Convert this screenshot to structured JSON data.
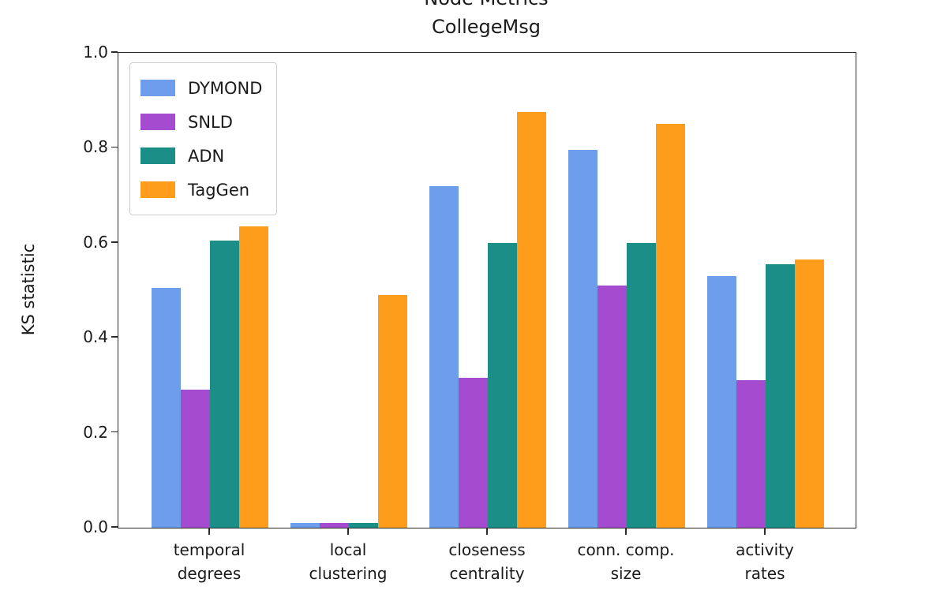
{
  "title": {
    "line1": "Node Metrics",
    "line2": "CollegeMsg"
  },
  "axes": {
    "ylabel": "KS statistic"
  },
  "chart_data": {
    "type": "bar",
    "title": "Node Metrics\nCollegeMsg",
    "xlabel": "",
    "ylabel": "KS statistic",
    "ylim": [
      0.0,
      1.0
    ],
    "yticks": [
      "0.0",
      "0.2",
      "0.4",
      "0.6",
      "0.8",
      "1.0"
    ],
    "grid": false,
    "legend_position": "upper left",
    "categories": [
      "temporal\ndegrees",
      "local\nclustering",
      "closeness\ncentrality",
      "conn. comp.\nsize",
      "activity\nrates"
    ],
    "series": [
      {
        "name": "DYMOND",
        "color": "#6E9DEB",
        "values": [
          0.505,
          0.01,
          0.72,
          0.795,
          0.53
        ]
      },
      {
        "name": "SNLD",
        "color": "#A44BCF",
        "values": [
          0.29,
          0.01,
          0.315,
          0.51,
          0.31
        ]
      },
      {
        "name": "ADN",
        "color": "#1B8E87",
        "values": [
          0.605,
          0.01,
          0.6,
          0.6,
          0.555
        ]
      },
      {
        "name": "TagGen",
        "color": "#FE9C1C",
        "values": [
          0.635,
          0.49,
          0.875,
          0.85,
          0.565
        ]
      }
    ]
  }
}
